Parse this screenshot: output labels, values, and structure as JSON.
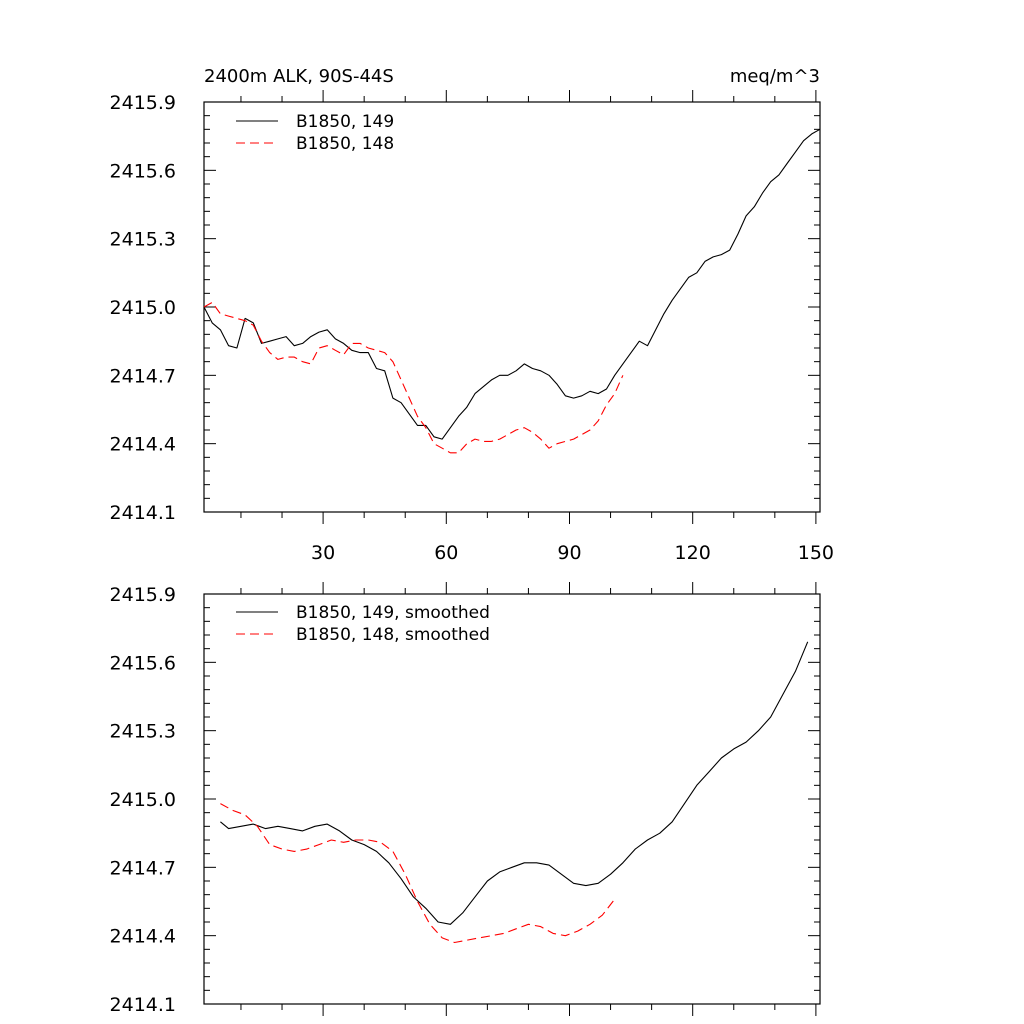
{
  "chart_data": [
    {
      "type": "line",
      "title_left": "2400m ALK, 90S-44S",
      "title_right": "meq/m^3",
      "xlim": [
        1,
        151
      ],
      "ylim": [
        2414.1,
        2415.9
      ],
      "xticks": [
        30,
        60,
        90,
        120,
        150
      ],
      "xtick_labels": [
        "30",
        "60",
        "90",
        "120",
        "150"
      ],
      "yticks": [
        2414.1,
        2414.4,
        2414.7,
        2415.0,
        2415.3,
        2415.6,
        2415.9
      ],
      "ytick_labels": [
        "2414.1",
        "2414.4",
        "2414.7",
        "2415.0",
        "2415.3",
        "2415.6",
        "2415.9"
      ],
      "legend_position": "top-left",
      "series": [
        {
          "name": "B1850, 149",
          "color": "#000000",
          "dash": "solid",
          "x": [
            1,
            3,
            5,
            7,
            9,
            11,
            13,
            15,
            17,
            19,
            21,
            23,
            25,
            27,
            29,
            31,
            33,
            35,
            37,
            39,
            41,
            43,
            45,
            47,
            49,
            51,
            53,
            55,
            57,
            59,
            61,
            63,
            65,
            67,
            69,
            71,
            73,
            75,
            77,
            79,
            81,
            83,
            85,
            87,
            89,
            91,
            93,
            95,
            97,
            99,
            101,
            103,
            105,
            107,
            109,
            111,
            113,
            115,
            117,
            119,
            121,
            123,
            125,
            127,
            129,
            131,
            133,
            135,
            137,
            139,
            141,
            143,
            145,
            147,
            149,
            151
          ],
          "values": [
            2415.0,
            2414.93,
            2414.9,
            2414.83,
            2414.82,
            2414.95,
            2414.93,
            2414.84,
            2414.85,
            2414.86,
            2414.87,
            2414.83,
            2414.84,
            2414.87,
            2414.89,
            2414.9,
            2414.86,
            2414.84,
            2414.81,
            2414.8,
            2414.8,
            2414.73,
            2414.72,
            2414.6,
            2414.58,
            2414.53,
            2414.48,
            2414.48,
            2414.43,
            2414.42,
            2414.47,
            2414.52,
            2414.56,
            2414.62,
            2414.65,
            2414.68,
            2414.7,
            2414.7,
            2414.72,
            2414.75,
            2414.73,
            2414.72,
            2414.7,
            2414.66,
            2414.61,
            2414.6,
            2414.61,
            2414.63,
            2414.62,
            2414.64,
            2414.7,
            2414.75,
            2414.8,
            2414.85,
            2414.83,
            2414.9,
            2414.97,
            2415.03,
            2415.08,
            2415.13,
            2415.15,
            2415.2,
            2415.22,
            2415.23,
            2415.25,
            2415.32,
            2415.4,
            2415.44,
            2415.5,
            2415.55,
            2415.58,
            2415.63,
            2415.68,
            2415.73,
            2415.76,
            2415.78
          ]
        },
        {
          "name": "B1850, 148",
          "color": "#ff0000",
          "dash": "dashed",
          "x": [
            1,
            3,
            5,
            7,
            9,
            11,
            13,
            15,
            17,
            19,
            21,
            23,
            25,
            27,
            29,
            31,
            33,
            35,
            37,
            39,
            41,
            43,
            45,
            47,
            49,
            51,
            53,
            55,
            57,
            59,
            61,
            63,
            65,
            67,
            69,
            71,
            73,
            75,
            77,
            79,
            81,
            83,
            85,
            87,
            89,
            91,
            93,
            95,
            97,
            99,
            101,
            103
          ],
          "values": [
            2415.0,
            2415.02,
            2414.97,
            2414.96,
            2414.95,
            2414.94,
            2414.92,
            2414.85,
            2414.8,
            2414.77,
            2414.78,
            2414.78,
            2414.76,
            2414.75,
            2414.82,
            2414.83,
            2414.81,
            2414.79,
            2414.84,
            2414.84,
            2414.82,
            2414.81,
            2414.8,
            2414.76,
            2414.68,
            2414.6,
            2414.52,
            2414.47,
            2414.4,
            2414.38,
            2414.36,
            2414.36,
            2414.4,
            2414.42,
            2414.41,
            2414.41,
            2414.42,
            2414.44,
            2414.46,
            2414.47,
            2414.45,
            2414.42,
            2414.38,
            2414.4,
            2414.41,
            2414.42,
            2414.44,
            2414.46,
            2414.5,
            2414.57,
            2414.62,
            2414.7
          ]
        }
      ]
    },
    {
      "type": "line",
      "xlim": [
        1,
        151
      ],
      "ylim": [
        2414.1,
        2415.9
      ],
      "xticks": [
        30,
        60,
        90,
        120,
        150
      ],
      "yticks": [
        2414.1,
        2414.4,
        2414.7,
        2415.0,
        2415.3,
        2415.6,
        2415.9
      ],
      "ytick_labels": [
        "2414.1",
        "2414.4",
        "2414.7",
        "2415.0",
        "2415.3",
        "2415.6",
        "2415.9"
      ],
      "legend_position": "top-left",
      "series": [
        {
          "name": "B1850, 149, smoothed",
          "color": "#000000",
          "dash": "solid",
          "x": [
            5,
            7,
            10,
            13,
            16,
            19,
            22,
            25,
            28,
            31,
            34,
            37,
            40,
            43,
            46,
            49,
            52,
            55,
            58,
            61,
            64,
            67,
            70,
            73,
            76,
            79,
            82,
            85,
            88,
            91,
            94,
            97,
            100,
            103,
            106,
            109,
            112,
            115,
            118,
            121,
            124,
            127,
            130,
            133,
            136,
            139,
            142,
            145,
            148
          ],
          "values": [
            2414.9,
            2414.87,
            2414.88,
            2414.89,
            2414.87,
            2414.88,
            2414.87,
            2414.86,
            2414.88,
            2414.89,
            2414.86,
            2414.82,
            2414.8,
            2414.77,
            2414.72,
            2414.65,
            2414.57,
            2414.52,
            2414.46,
            2414.45,
            2414.5,
            2414.57,
            2414.64,
            2414.68,
            2414.7,
            2414.72,
            2414.72,
            2414.71,
            2414.67,
            2414.63,
            2414.62,
            2414.63,
            2414.67,
            2414.72,
            2414.78,
            2414.82,
            2414.85,
            2414.9,
            2414.98,
            2415.06,
            2415.12,
            2415.18,
            2415.22,
            2415.25,
            2415.3,
            2415.36,
            2415.46,
            2415.56,
            2415.69
          ]
        },
        {
          "name": "B1850, 148, smoothed",
          "color": "#ff0000",
          "dash": "dashed",
          "x": [
            5,
            8,
            11,
            14,
            17,
            20,
            23,
            26,
            29,
            32,
            35,
            38,
            41,
            44,
            47,
            50,
            53,
            56,
            59,
            62,
            65,
            68,
            71,
            74,
            77,
            80,
            83,
            86,
            89,
            92,
            95,
            98,
            101
          ],
          "values": [
            2414.98,
            2414.95,
            2414.93,
            2414.88,
            2414.8,
            2414.78,
            2414.77,
            2414.78,
            2414.8,
            2414.82,
            2414.81,
            2414.82,
            2414.82,
            2414.81,
            2414.77,
            2414.67,
            2414.55,
            2414.45,
            2414.39,
            2414.37,
            2414.38,
            2414.39,
            2414.4,
            2414.41,
            2414.43,
            2414.45,
            2414.44,
            2414.41,
            2414.4,
            2414.42,
            2414.45,
            2414.49,
            2414.56
          ]
        }
      ]
    }
  ]
}
